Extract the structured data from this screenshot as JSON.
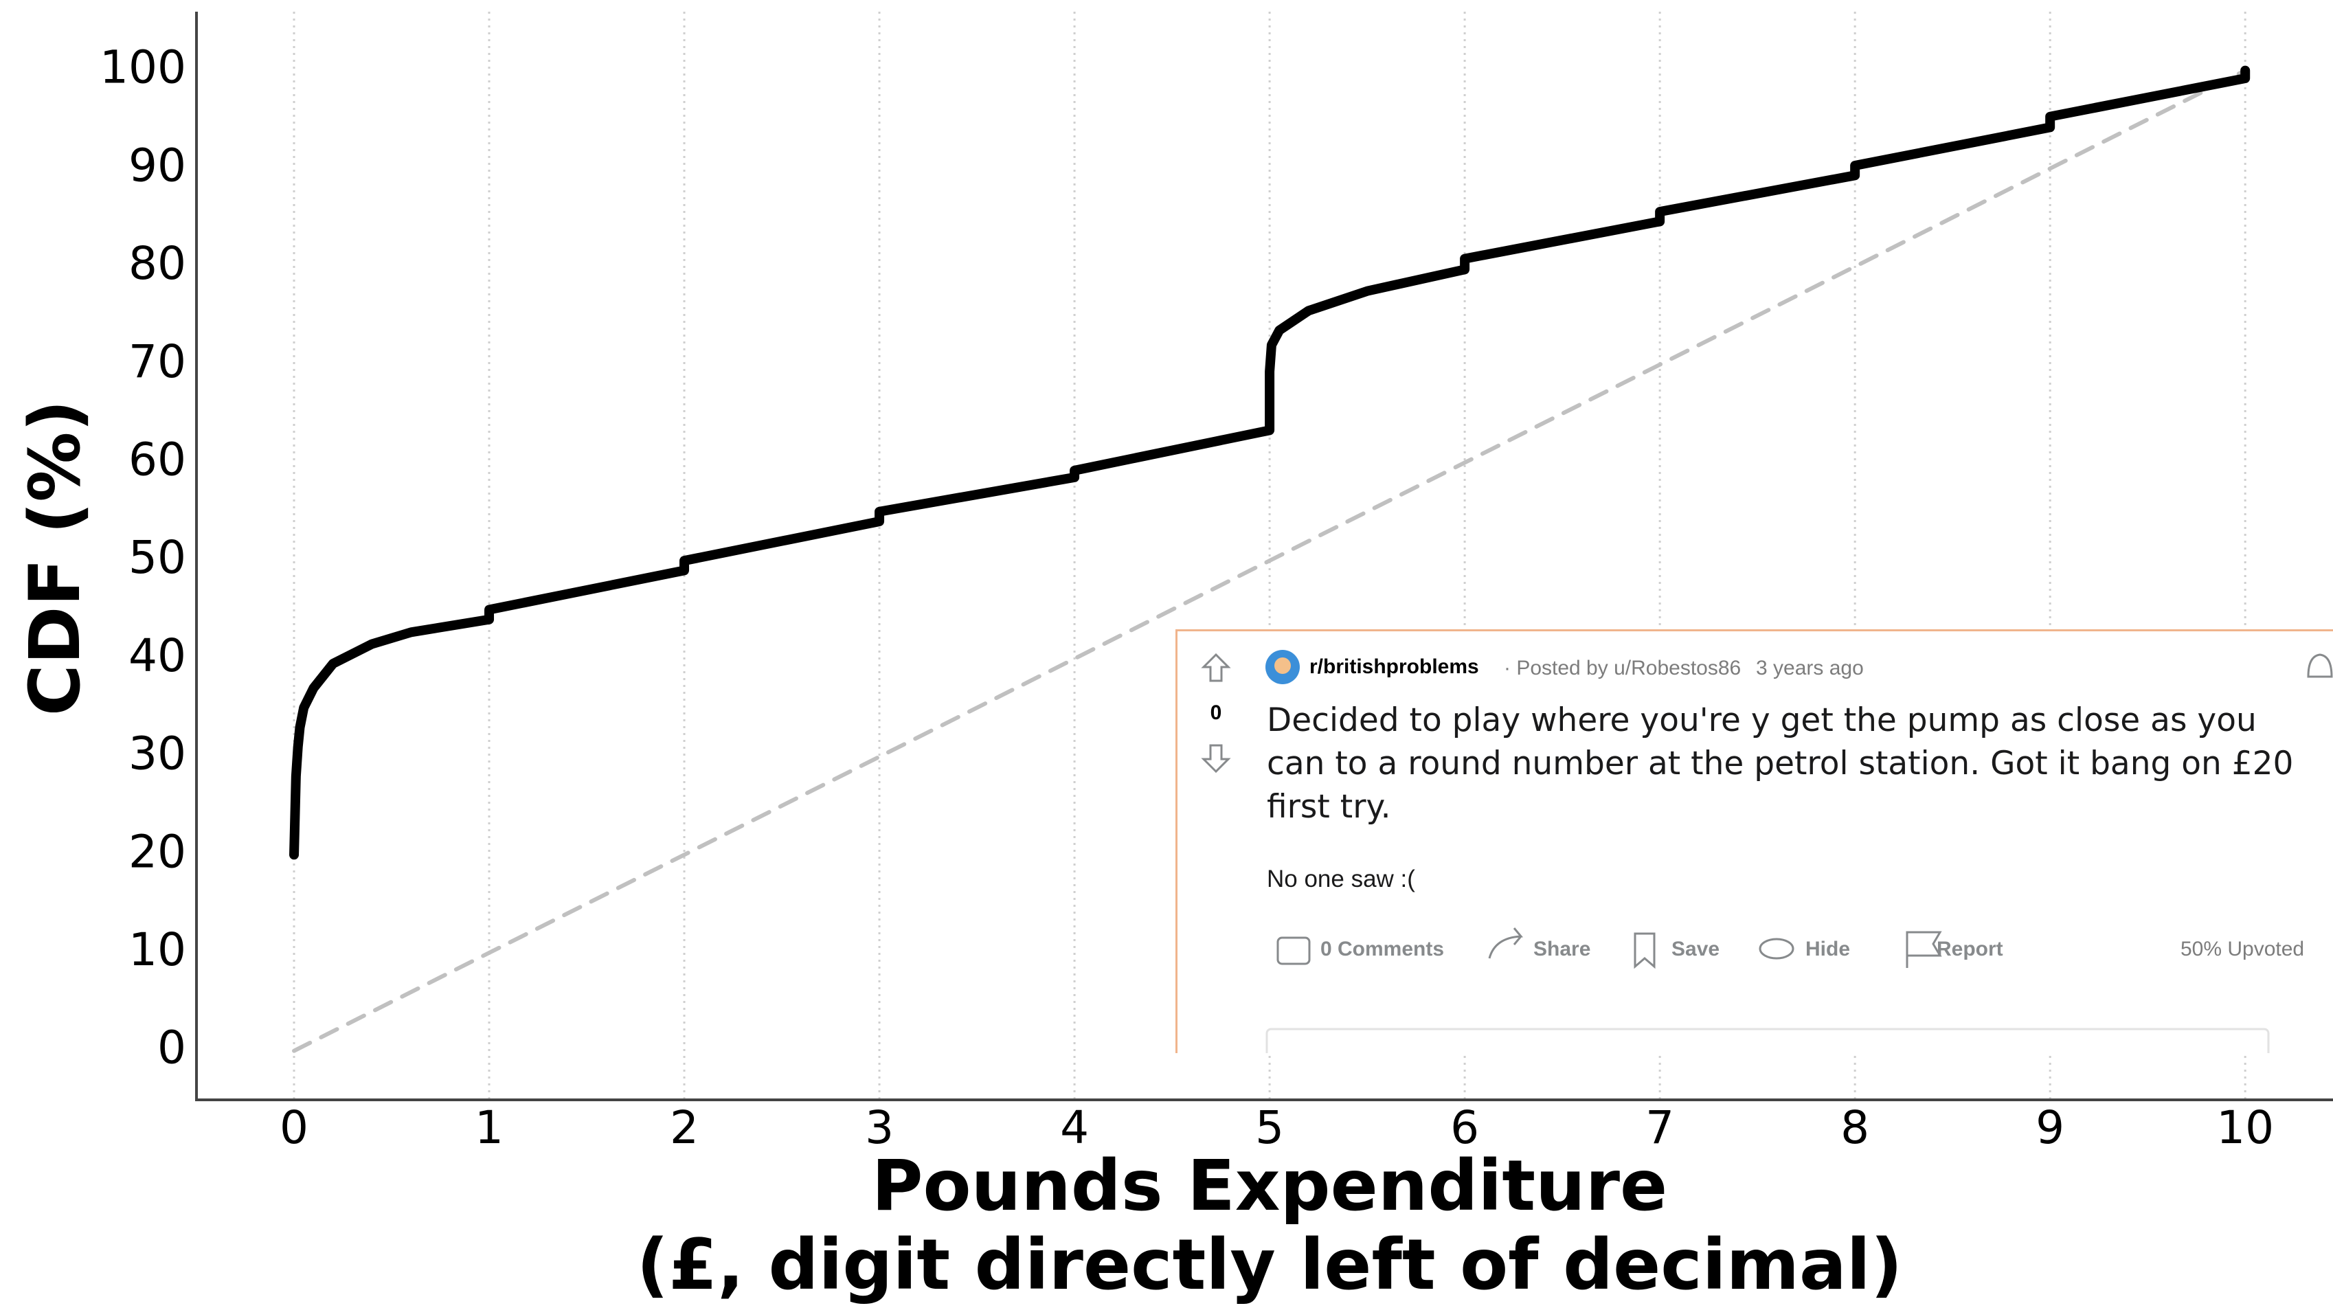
{
  "chart_data": {
    "type": "line",
    "x_label": [
      "Pounds Expenditure",
      "(£, digit directly left of decimal)"
    ],
    "y_label": "CDF (%)",
    "series": [
      {
        "color": "#000000",
        "style": "dots",
        "x": [
          0,
          0.01,
          0.02,
          0.03,
          0.05,
          0.1,
          0.2,
          0.4,
          0.6,
          1,
          1,
          2,
          2,
          3,
          3,
          4,
          4,
          5,
          5,
          5.01,
          5.05,
          5.2,
          5.5,
          6,
          6,
          7,
          7,
          8,
          8,
          9,
          9,
          10,
          10
        ],
        "values": [
          20,
          28,
          31,
          33,
          35,
          37,
          39.5,
          41.5,
          42.7,
          44,
          45,
          49,
          50,
          54,
          55,
          58.5,
          59.2,
          63.3,
          69.3,
          72,
          73.5,
          75.5,
          77.5,
          79.7,
          80.8,
          84.6,
          85.6,
          89.3,
          90.3,
          94.2,
          95.3,
          99.2,
          100
        ]
      },
      {
        "color": "#c0c0c0",
        "style": "dashed",
        "x": [
          0,
          10
        ],
        "values": [
          0,
          100
        ]
      }
    ],
    "xlim": [
      -0.5,
      10.45
    ],
    "ylim": [
      -5,
      106
    ],
    "xticks": [
      0,
      1,
      2,
      3,
      4,
      5,
      6,
      7,
      8,
      9,
      10
    ],
    "yticks": [
      0,
      10,
      20,
      30,
      40,
      50,
      60,
      70,
      80,
      90,
      100
    ],
    "grid": "x"
  },
  "post": {
    "subreddit": "r/britishproblems",
    "posted_by": "· Posted by u/Robestos86",
    "age": "3 years ago",
    "votes": 0,
    "title": "Decided to play where you're y get the pump as close as you can to a round number at the petrol station. Got it bang on £20 first try.",
    "body": "No one saw :(",
    "actions": [
      "0 Comments",
      "Share",
      "Save",
      "Hide",
      "Report"
    ],
    "upvoted": "50% Upvoted"
  }
}
